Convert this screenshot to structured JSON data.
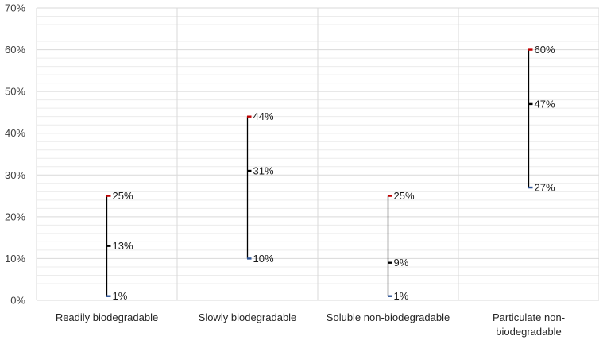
{
  "chart_data": {
    "type": "high-low-close",
    "title": "",
    "xlabel": "",
    "ylabel": "",
    "ylim": [
      0,
      70
    ],
    "y_tick_values": [
      0,
      10,
      20,
      30,
      40,
      50,
      60,
      70
    ],
    "y_tick_labels": [
      "0%",
      "10%",
      "20%",
      "30%",
      "40%",
      "50%",
      "60%",
      "70%"
    ],
    "grid": true,
    "legend": "none",
    "categories": [
      [
        "Readily biodegradable"
      ],
      [
        "Slowly biodegradable"
      ],
      [
        "Soluble non-biodegradable"
      ],
      [
        "Particulate non-",
        "biodegradable"
      ]
    ],
    "series": [
      {
        "values": [
          25,
          44,
          25,
          60
        ],
        "labels": [
          "25%",
          "44%",
          "25%",
          "60%"
        ],
        "color": "#c00000"
      },
      {
        "values": [
          13,
          31,
          9,
          47
        ],
        "labels": [
          "13%",
          "31%",
          "9%",
          "47%"
        ],
        "color": "#000000"
      },
      {
        "values": [
          1,
          10,
          1,
          27
        ],
        "labels": [
          "1%",
          "10%",
          "1%",
          "27%"
        ],
        "color": "#2f5597"
      }
    ],
    "colors": {
      "connector": "#000000",
      "grid_major": "#d9d9d9",
      "grid_minor": "#ececec"
    }
  }
}
